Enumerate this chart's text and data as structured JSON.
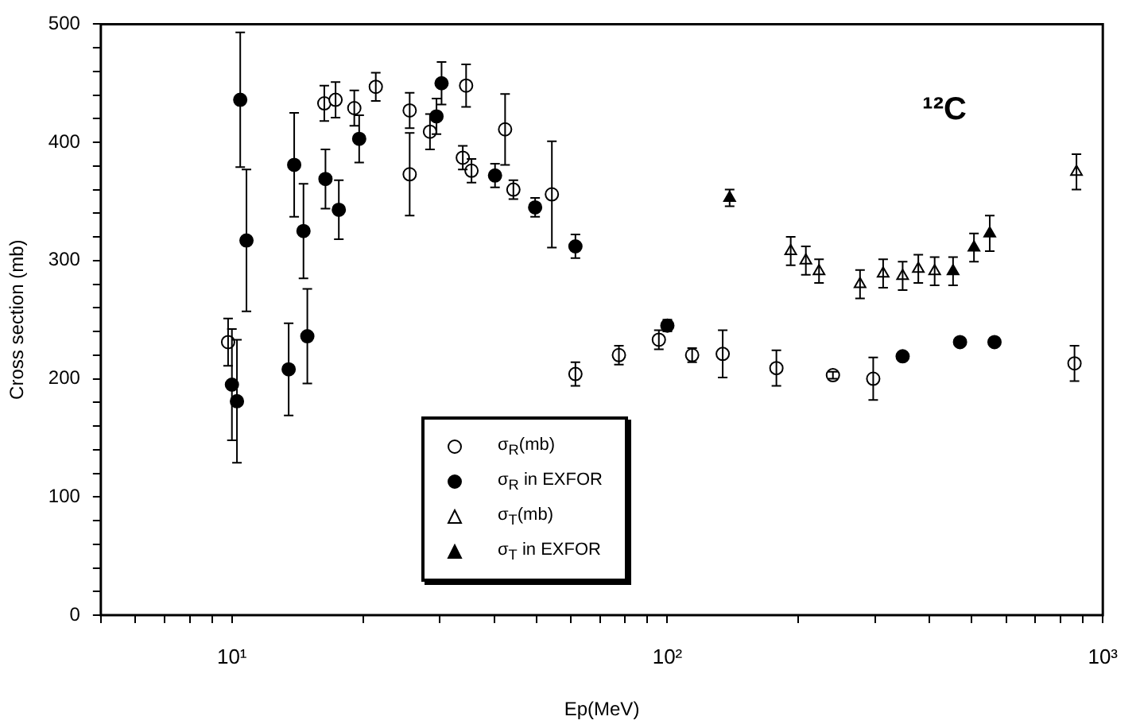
{
  "chart_data": {
    "type": "scatter",
    "xlabel": "Ep(MeV)",
    "ylabel": "Cross section (mb)",
    "log": "x",
    "grid": false,
    "legend": "bottom",
    "annotations": [
      "¹²C"
    ],
    "xlim": [
      5,
      1000
    ],
    "ylim": [
      0,
      500
    ],
    "xticks": [
      {
        "value": 5,
        "label": null
      },
      {
        "value": 6,
        "label": null
      },
      {
        "value": 7,
        "label": null
      },
      {
        "value": 8,
        "label": null
      },
      {
        "value": 9,
        "label": null
      },
      {
        "value": 10,
        "label": "10¹"
      },
      {
        "value": 20,
        "label": null
      },
      {
        "value": 30,
        "label": null
      },
      {
        "value": 40,
        "label": null
      },
      {
        "value": 50,
        "label": null
      },
      {
        "value": 60,
        "label": null
      },
      {
        "value": 70,
        "label": null
      },
      {
        "value": 80,
        "label": null
      },
      {
        "value": 90,
        "label": null
      },
      {
        "value": 100,
        "label": "10²"
      },
      {
        "value": 200,
        "label": null
      },
      {
        "value": 300,
        "label": null
      },
      {
        "value": 400,
        "label": null
      },
      {
        "value": 500,
        "label": null
      },
      {
        "value": 600,
        "label": null
      },
      {
        "value": 700,
        "label": null
      },
      {
        "value": 800,
        "label": null
      },
      {
        "value": 900,
        "label": null
      },
      {
        "value": 1000,
        "label": "10³"
      }
    ],
    "yticks": [
      0,
      {
        "value": 20,
        "label": null
      },
      {
        "value": 40,
        "label": null
      },
      {
        "value": 60,
        "label": null
      },
      {
        "value": 80,
        "label": null
      },
      100,
      {
        "value": 120,
        "label": null
      },
      {
        "value": 140,
        "label": null
      },
      {
        "value": 160,
        "label": null
      },
      {
        "value": 180,
        "label": null
      },
      200,
      {
        "value": 220,
        "label": null
      },
      {
        "value": 240,
        "label": null
      },
      {
        "value": 260,
        "label": null
      },
      {
        "value": 280,
        "label": null
      },
      300,
      {
        "value": 320,
        "label": null
      },
      {
        "value": 340,
        "label": null
      },
      {
        "value": 360,
        "label": null
      },
      {
        "value": 380,
        "label": null
      },
      400,
      {
        "value": 420,
        "label": null
      },
      {
        "value": 440,
        "label": null
      },
      {
        "value": 460,
        "label": null
      },
      {
        "value": 480,
        "label": null
      },
      500
    ],
    "series": [
      {
        "name": "σ$_{R}$(mb)",
        "color": "#000000",
        "marker": "circle",
        "x": [
          9.8,
          16.3,
          17.3,
          19.1,
          21.4,
          25.6,
          25.6,
          28.5,
          33.9,
          34.5,
          35.5,
          42.4,
          44.3,
          54.3,
          61.5,
          77.4,
          95.6,
          114,
          134,
          178,
          240,
          297,
          861
        ],
        "values": [
          231,
          433,
          436,
          429,
          447,
          427,
          373,
          409,
          387,
          448,
          376,
          411,
          360,
          356,
          204,
          220,
          233,
          220,
          221,
          209,
          203,
          200,
          213
        ],
        "errors": [
          20,
          15,
          15,
          15,
          12,
          15,
          35,
          15,
          10,
          18,
          10,
          30,
          8,
          45,
          10,
          8,
          8,
          6,
          20,
          15,
          3,
          18,
          15
        ]
      },
      {
        "name": "σ$_{R}$ in EXFOR",
        "color": "#000000",
        "marker": "circle",
        "x": [
          10.0,
          10.27,
          10.45,
          10.8,
          13.5,
          13.9,
          14.6,
          14.9,
          16.4,
          17.6,
          19.6,
          29.5,
          30.3,
          40.2,
          49.7,
          61.5,
          100,
          347,
          470,
          564
        ],
        "values": [
          195,
          181,
          436,
          317,
          208,
          381,
          325,
          236,
          369,
          343,
          403,
          422,
          450,
          372,
          345,
          312,
          245,
          219,
          231,
          231
        ],
        "errors": [
          47,
          52,
          57,
          60,
          39,
          44,
          40,
          40,
          25,
          25,
          20,
          15,
          18,
          10,
          8,
          10,
          5,
          null,
          null,
          null
        ]
      },
      {
        "name": "σ$_{T}$(mb)",
        "color": "#000000",
        "marker": "triangle",
        "x": [
          192,
          208,
          223,
          277,
          313,
          347,
          377,
          411,
          870
        ],
        "values": [
          308,
          300,
          291,
          280,
          289,
          287,
          293,
          291,
          375
        ],
        "errors": [
          12,
          12,
          10,
          12,
          12,
          12,
          12,
          12,
          15
        ]
      },
      {
        "name": "σ$_{T}$ in EXFOR",
        "color": "#000000",
        "marker": "triangle",
        "x": [
          139,
          453,
          506,
          550
        ],
        "values": [
          353,
          291,
          311,
          323
        ],
        "errors": [
          7,
          12,
          12,
          15
        ]
      }
    ]
  }
}
